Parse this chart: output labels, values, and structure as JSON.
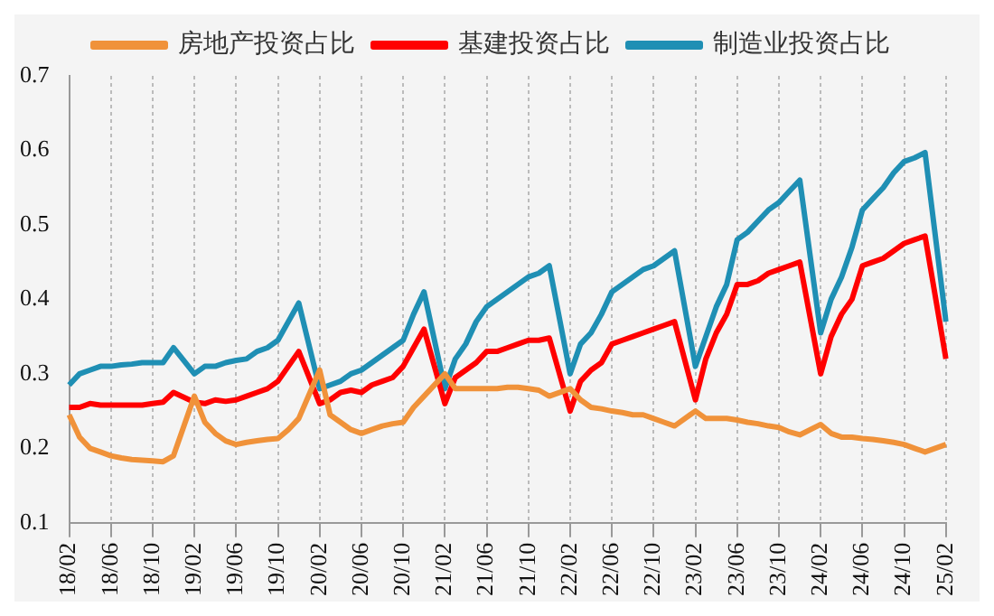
{
  "chart_data": {
    "type": "line",
    "categories": [
      "18/02",
      null,
      null,
      null,
      "18/06",
      null,
      null,
      null,
      "18/10",
      null,
      null,
      null,
      "19/02",
      null,
      null,
      null,
      "19/06",
      null,
      null,
      null,
      "19/10",
      null,
      null,
      null,
      "20/02",
      null,
      null,
      null,
      "20/06",
      null,
      null,
      null,
      "20/10",
      null,
      null,
      null,
      "21/02",
      null,
      null,
      null,
      "21/06",
      null,
      null,
      null,
      "21/10",
      null,
      null,
      null,
      "22/02",
      null,
      null,
      null,
      "22/06",
      null,
      null,
      null,
      "22/10",
      null,
      null,
      null,
      "23/02",
      null,
      null,
      null,
      "23/06",
      null,
      null,
      null,
      "23/10",
      null,
      null,
      null,
      "24/02",
      null,
      null,
      null,
      "24/06",
      null,
      null,
      null,
      "24/10",
      null,
      null,
      null,
      "25/02"
    ],
    "series": [
      {
        "name": "房地产投资占比",
        "color": "#f0923a",
        "values": [
          0.245,
          0.215,
          0.2,
          0.195,
          0.19,
          0.187,
          0.185,
          0.184,
          0.183,
          0.182,
          0.19,
          null,
          0.27,
          0.235,
          0.22,
          0.21,
          0.205,
          0.208,
          0.21,
          0.212,
          0.213,
          0.225,
          0.24,
          null,
          0.305,
          0.245,
          0.235,
          0.225,
          0.22,
          0.225,
          0.23,
          0.233,
          0.235,
          0.255,
          0.27,
          null,
          0.3,
          0.28,
          0.28,
          0.28,
          0.28,
          0.28,
          0.282,
          0.282,
          0.28,
          0.278,
          0.27,
          null,
          0.28,
          0.265,
          0.255,
          0.253,
          0.25,
          0.248,
          0.245,
          0.245,
          0.24,
          0.235,
          0.23,
          null,
          0.25,
          0.24,
          0.24,
          0.24,
          0.238,
          0.235,
          0.233,
          0.23,
          0.228,
          0.222,
          0.218,
          null,
          0.232,
          0.22,
          0.215,
          0.215,
          0.213,
          0.212,
          0.21,
          0.208,
          0.205,
          0.2,
          0.195,
          null,
          0.205
        ]
      },
      {
        "name": "基建投资占比",
        "color": "#ff0000",
        "values": [
          0.255,
          0.255,
          0.26,
          0.258,
          0.258,
          0.258,
          0.258,
          0.258,
          0.26,
          0.262,
          0.275,
          null,
          0.262,
          0.26,
          0.265,
          0.263,
          0.265,
          0.27,
          0.275,
          0.28,
          0.29,
          0.31,
          0.33,
          null,
          0.26,
          0.265,
          0.275,
          0.278,
          0.275,
          0.285,
          0.29,
          0.295,
          0.31,
          0.335,
          0.36,
          null,
          0.26,
          0.295,
          0.305,
          0.315,
          0.33,
          0.33,
          0.335,
          0.34,
          0.345,
          0.345,
          0.348,
          null,
          0.25,
          0.29,
          0.305,
          0.315,
          0.34,
          0.345,
          0.35,
          0.355,
          0.36,
          0.365,
          0.37,
          null,
          0.265,
          0.32,
          0.355,
          0.38,
          0.42,
          0.42,
          0.425,
          0.435,
          0.44,
          0.445,
          0.45,
          null,
          0.3,
          0.35,
          0.38,
          0.4,
          0.445,
          0.45,
          0.455,
          0.465,
          0.475,
          0.48,
          0.485,
          null,
          0.32
        ]
      },
      {
        "name": "制造业投资占比",
        "color": "#1f8fb4",
        "values": [
          0.285,
          0.3,
          0.305,
          0.31,
          0.31,
          0.312,
          0.313,
          0.315,
          0.315,
          0.315,
          0.335,
          null,
          0.3,
          0.31,
          0.31,
          0.315,
          0.318,
          0.32,
          0.33,
          0.335,
          0.345,
          0.37,
          0.395,
          null,
          0.28,
          0.285,
          0.29,
          0.3,
          0.305,
          0.315,
          0.325,
          0.335,
          0.345,
          0.38,
          0.41,
          null,
          0.28,
          0.32,
          0.34,
          0.37,
          0.39,
          0.4,
          0.41,
          0.42,
          0.43,
          0.435,
          0.445,
          null,
          0.3,
          0.34,
          0.355,
          0.38,
          0.41,
          0.42,
          0.43,
          0.44,
          0.445,
          0.455,
          0.465,
          null,
          0.31,
          0.35,
          0.39,
          0.42,
          0.48,
          0.49,
          0.505,
          0.52,
          0.53,
          0.545,
          0.56,
          null,
          0.355,
          0.4,
          0.43,
          0.47,
          0.52,
          0.535,
          0.55,
          0.57,
          0.585,
          0.59,
          0.597,
          null,
          0.37
        ]
      }
    ],
    "ylim": [
      0.1,
      0.7
    ],
    "yticks": [
      0.1,
      0.2,
      0.3,
      0.4,
      0.5,
      0.6,
      0.7
    ],
    "grid": "x",
    "legend": "top",
    "marker": "none",
    "line_style": "solid"
  }
}
